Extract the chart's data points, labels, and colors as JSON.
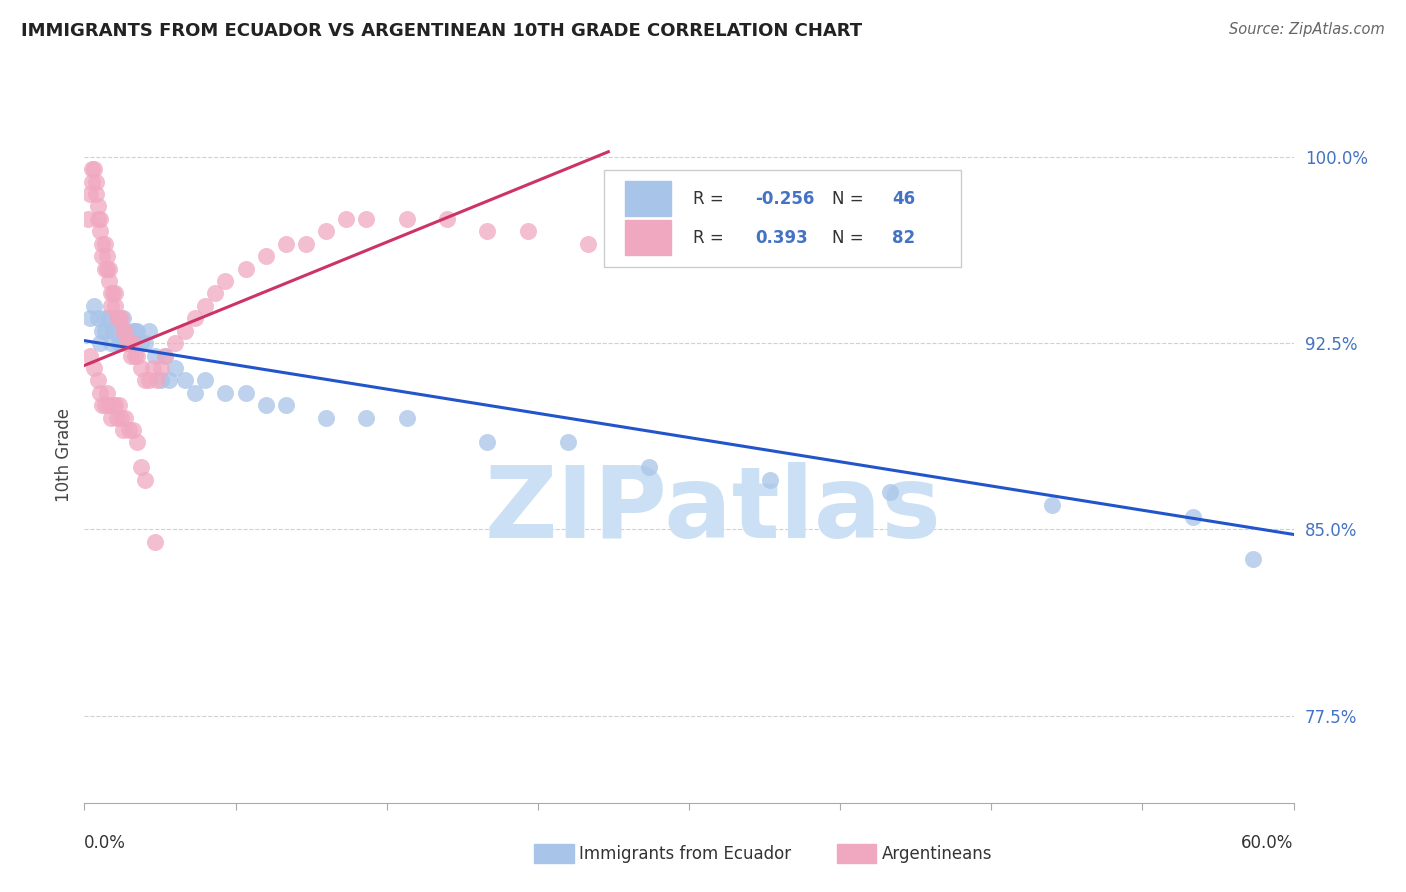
{
  "title": "IMMIGRANTS FROM ECUADOR VS ARGENTINEAN 10TH GRADE CORRELATION CHART",
  "source": "Source: ZipAtlas.com",
  "ylabel": "10th Grade",
  "watermark": "ZIPatlas",
  "xlim": [
    0.0,
    0.6
  ],
  "ylim": [
    0.74,
    1.02
  ],
  "yticks": [
    0.775,
    0.85,
    0.925,
    1.0
  ],
  "ytick_labels": [
    "77.5%",
    "85.0%",
    "92.5%",
    "100.0%"
  ],
  "legend_r_blue": "-0.256",
  "legend_n_blue": "46",
  "legend_r_pink": "0.393",
  "legend_n_pink": "82",
  "blue_color": "#a8c4e8",
  "pink_color": "#f0a8c0",
  "blue_line_color": "#2255cc",
  "pink_line_color": "#cc3366",
  "blue_scatter_x": [
    0.003,
    0.005,
    0.007,
    0.008,
    0.009,
    0.01,
    0.01,
    0.012,
    0.013,
    0.014,
    0.015,
    0.016,
    0.017,
    0.018,
    0.019,
    0.02,
    0.022,
    0.024,
    0.025,
    0.026,
    0.028,
    0.03,
    0.032,
    0.035,
    0.038,
    0.04,
    0.042,
    0.045,
    0.05,
    0.055,
    0.06,
    0.07,
    0.08,
    0.09,
    0.1,
    0.12,
    0.14,
    0.16,
    0.2,
    0.24,
    0.28,
    0.34,
    0.4,
    0.48,
    0.55,
    0.58
  ],
  "blue_scatter_y": [
    0.935,
    0.94,
    0.935,
    0.925,
    0.93,
    0.935,
    0.93,
    0.935,
    0.925,
    0.93,
    0.93,
    0.935,
    0.925,
    0.925,
    0.935,
    0.93,
    0.925,
    0.93,
    0.93,
    0.93,
    0.925,
    0.925,
    0.93,
    0.92,
    0.91,
    0.92,
    0.91,
    0.915,
    0.91,
    0.905,
    0.91,
    0.905,
    0.905,
    0.9,
    0.9,
    0.895,
    0.895,
    0.895,
    0.885,
    0.885,
    0.875,
    0.87,
    0.865,
    0.86,
    0.855,
    0.838
  ],
  "pink_scatter_x": [
    0.002,
    0.003,
    0.004,
    0.004,
    0.005,
    0.006,
    0.006,
    0.007,
    0.007,
    0.008,
    0.008,
    0.009,
    0.009,
    0.01,
    0.01,
    0.011,
    0.011,
    0.012,
    0.012,
    0.013,
    0.013,
    0.014,
    0.015,
    0.015,
    0.016,
    0.017,
    0.018,
    0.019,
    0.02,
    0.021,
    0.022,
    0.023,
    0.024,
    0.025,
    0.026,
    0.028,
    0.03,
    0.032,
    0.034,
    0.036,
    0.038,
    0.04,
    0.045,
    0.05,
    0.055,
    0.06,
    0.065,
    0.07,
    0.08,
    0.09,
    0.1,
    0.11,
    0.12,
    0.13,
    0.14,
    0.16,
    0.18,
    0.2,
    0.22,
    0.25,
    0.003,
    0.005,
    0.007,
    0.008,
    0.009,
    0.01,
    0.011,
    0.012,
    0.013,
    0.014,
    0.015,
    0.016,
    0.017,
    0.018,
    0.019,
    0.02,
    0.022,
    0.024,
    0.026,
    0.028,
    0.03,
    0.035
  ],
  "pink_scatter_y": [
    0.975,
    0.985,
    0.99,
    0.995,
    0.995,
    0.99,
    0.985,
    0.98,
    0.975,
    0.975,
    0.97,
    0.965,
    0.96,
    0.955,
    0.965,
    0.96,
    0.955,
    0.955,
    0.95,
    0.945,
    0.94,
    0.945,
    0.945,
    0.94,
    0.935,
    0.935,
    0.935,
    0.93,
    0.93,
    0.925,
    0.925,
    0.92,
    0.925,
    0.92,
    0.92,
    0.915,
    0.91,
    0.91,
    0.915,
    0.91,
    0.915,
    0.92,
    0.925,
    0.93,
    0.935,
    0.94,
    0.945,
    0.95,
    0.955,
    0.96,
    0.965,
    0.965,
    0.97,
    0.975,
    0.975,
    0.975,
    0.975,
    0.97,
    0.97,
    0.965,
    0.92,
    0.915,
    0.91,
    0.905,
    0.9,
    0.9,
    0.905,
    0.9,
    0.895,
    0.9,
    0.9,
    0.895,
    0.9,
    0.895,
    0.89,
    0.895,
    0.89,
    0.89,
    0.885,
    0.875,
    0.87,
    0.845
  ],
  "blue_trendline_x": [
    0.0,
    0.6
  ],
  "blue_trendline_y": [
    0.926,
    0.848
  ],
  "pink_trendline_x": [
    0.0,
    0.26
  ],
  "pink_trendline_y": [
    0.916,
    1.002
  ]
}
